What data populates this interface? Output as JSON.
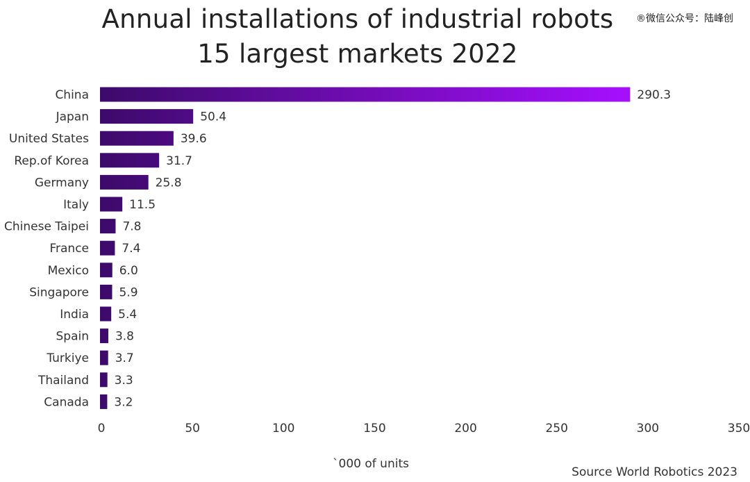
{
  "watermark": "®微信公众号：陆峰创",
  "chart_data": {
    "type": "bar",
    "orientation": "horizontal",
    "title": "Annual installations of industrial robots",
    "subtitle": "15 largest markets 2022",
    "xlabel": "`000 of units",
    "ylabel": "",
    "source": "Source World Robotics 2023",
    "categories": [
      "China",
      "Japan",
      "United States",
      "Rep.of Korea",
      "Germany",
      "Italy",
      "Chinese Taipei",
      "France",
      "Mexico",
      "Singapore",
      "India",
      "Spain",
      "Turkiye",
      "Thailand",
      "Canada"
    ],
    "values": [
      290.3,
      50.4,
      39.6,
      31.7,
      25.8,
      11.5,
      7.8,
      7.4,
      6.0,
      5.9,
      5.4,
      3.8,
      3.7,
      3.3,
      3.2
    ],
    "value_labels": [
      "290.3",
      "50.4",
      "39.6",
      "31.7",
      "25.8",
      "11.5",
      "7.8",
      "7.4",
      "6.0",
      "5.9",
      "5.4",
      "3.8",
      "3.7",
      "3.3",
      "3.2"
    ],
    "xlim": [
      0,
      350
    ],
    "xticks": [
      0,
      50,
      100,
      150,
      200,
      250,
      300,
      350
    ],
    "grid": false,
    "legend": "none",
    "colors": {
      "bar_start": "#3d0a6b",
      "bar_end": "#a60fff"
    }
  }
}
